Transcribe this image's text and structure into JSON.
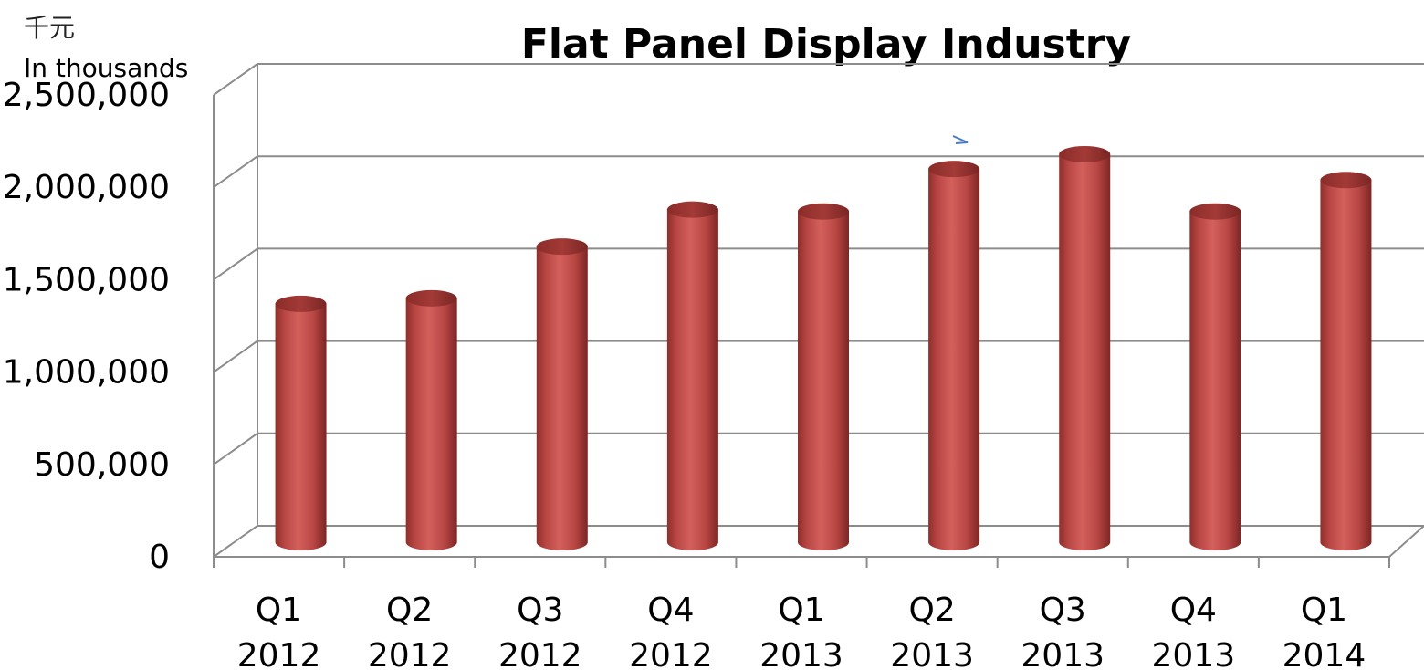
{
  "unit_labels": {
    "currency": "千元",
    "scale": "In thousands"
  },
  "colors": {
    "bar": "#c0504d",
    "grid": "#8c8c8c",
    "annotation": "#4a7ac7"
  },
  "chart_data": {
    "type": "bar",
    "title": "Flat Panel Display Industry",
    "categories": [
      [
        "Q1",
        "2012"
      ],
      [
        "Q2",
        "2012"
      ],
      [
        "Q3",
        "2012"
      ],
      [
        "Q4",
        "2012"
      ],
      [
        "Q1",
        "2013"
      ],
      [
        "Q2",
        "2013"
      ],
      [
        "Q3",
        "2013"
      ],
      [
        "Q4",
        "2013"
      ],
      [
        "Q1",
        "2014"
      ]
    ],
    "values": [
      1290000,
      1320000,
      1600000,
      1800000,
      1790000,
      2020000,
      2100000,
      1790000,
      1960000
    ],
    "ylim": [
      0,
      2500000
    ],
    "yticks": [
      "0",
      "500,000",
      "1,000,000",
      "1,500,000",
      "2,000,000",
      "2,500,000"
    ],
    "grid": true,
    "style": "3d-cylinder"
  }
}
